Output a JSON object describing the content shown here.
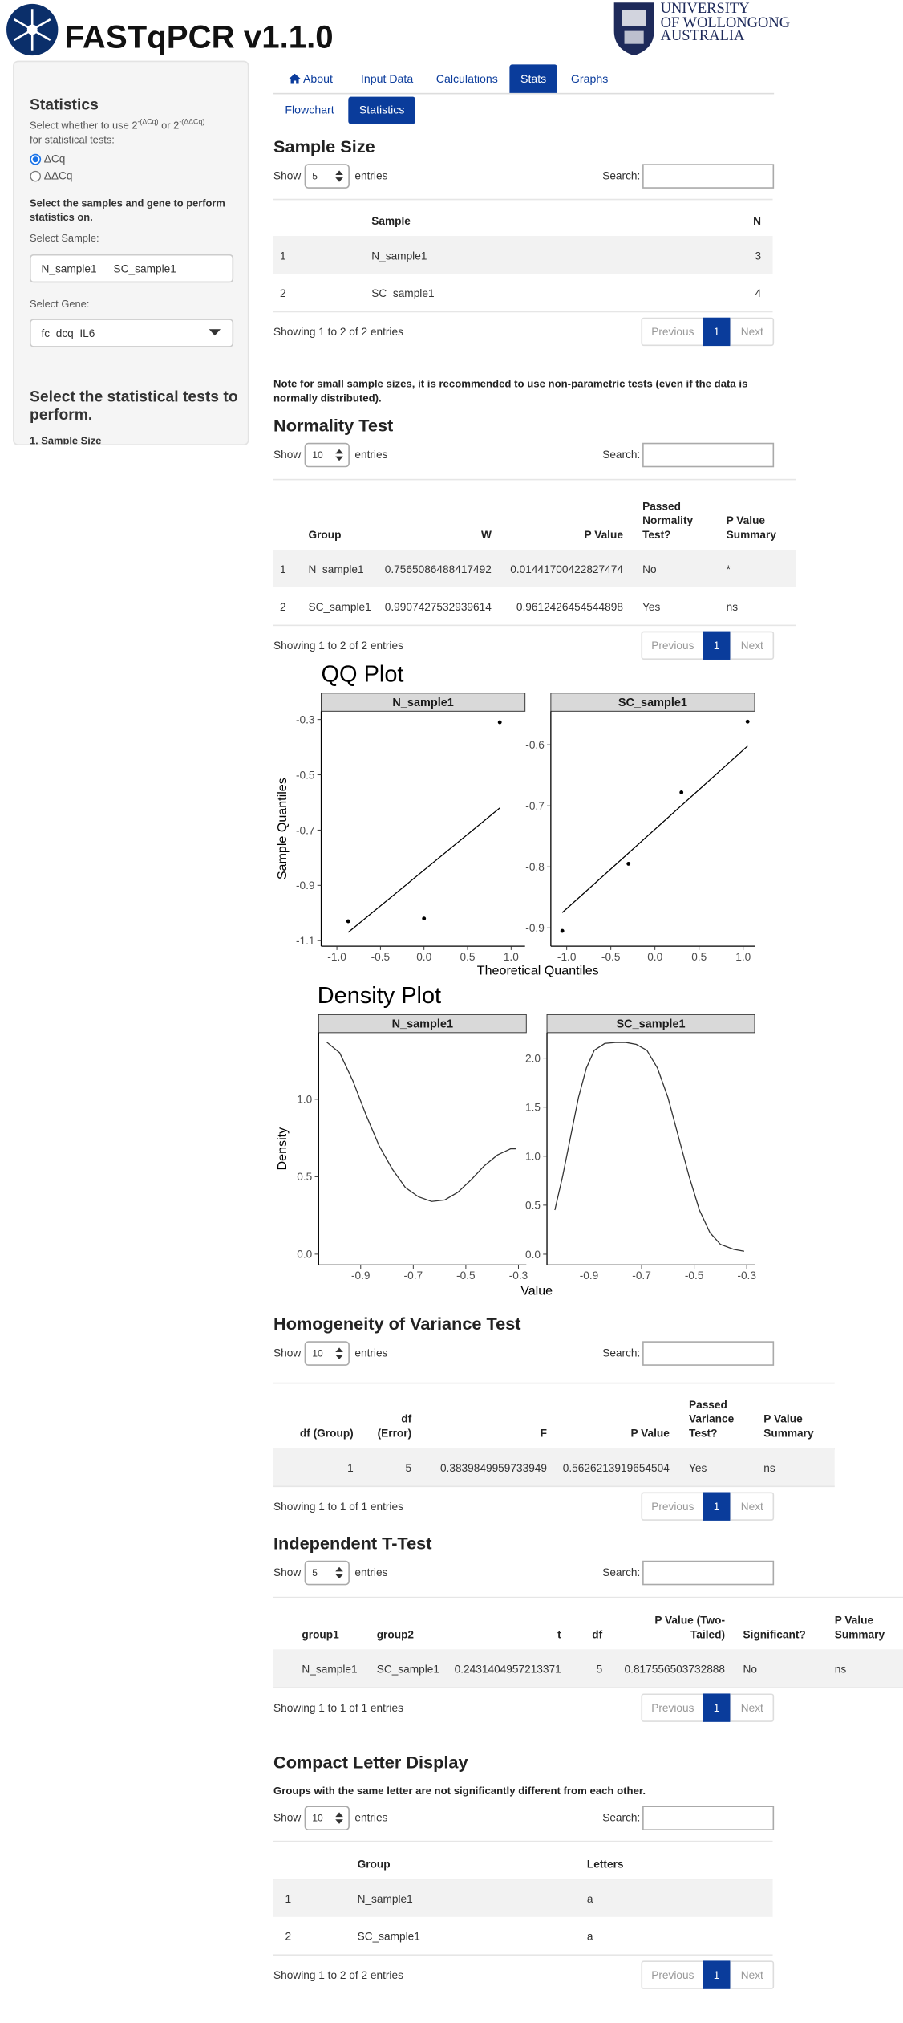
{
  "header": {
    "title": "FASTqPCR v1.1.0",
    "university": [
      "UNIVERSITY",
      "OF WOLLONGONG",
      "AUSTRALIA"
    ]
  },
  "sidebar": {
    "heading": "Statistics",
    "prompt": {
      "text1": "Select whether to use 2",
      "sup1": "-(ΔCq)",
      "text2": "or 2",
      "sup2": "-(ΔΔCq)",
      "text3": "for statistical tests:"
    },
    "options": [
      "ΔCq",
      "ΔΔCq"
    ],
    "samples_prompt": "Select the samples and gene to perform statistics on.",
    "sample_label": "Select Sample:",
    "samples": [
      "N_sample1",
      "SC_sample1"
    ],
    "gene_label": "Select Gene:",
    "gene": "fc_dcq_IL6",
    "tests_heading": "Select the statistical tests to perform.",
    "first_test": "1. Sample Size"
  },
  "tabs": {
    "items": [
      "About",
      "Input Data",
      "Calculations",
      "Stats",
      "Graphs"
    ],
    "subtabs": [
      "Flowchart",
      "Statistics"
    ]
  },
  "sample_size": {
    "title": "Sample Size",
    "show": "Show",
    "length": "5",
    "entries": "entries",
    "search": "Search:",
    "columns": [
      null,
      "Sample",
      "N"
    ],
    "rows": [
      [
        "1",
        "N_sample1",
        "3"
      ],
      [
        "2",
        "SC_sample1",
        "4"
      ]
    ],
    "info": "Showing 1 to 2 of 2 entries",
    "pager": {
      "previous": "Previous",
      "page": "1",
      "next": "Next"
    }
  },
  "note": "Note for small sample sizes, it is recommended to use non-parametric tests (even if the data is normally distributed).",
  "normality": {
    "title": "Normality Test",
    "show": "Show",
    "length": "10",
    "entries": "entries",
    "search": "Search:",
    "columns": [
      null,
      "Group",
      "W",
      "P Value",
      "Passed Normality Test?",
      "P Value Summary"
    ],
    "rows": [
      [
        "1",
        "N_sample1",
        "0.7565086488417492",
        "0.01441700422827474",
        "No",
        "*"
      ],
      [
        "2",
        "SC_sample1",
        "0.9907427532939614",
        "0.9612426454544898",
        "Yes",
        "ns"
      ]
    ],
    "info": "Showing 1 to 2 of 2 entries",
    "pager": {
      "previous": "Previous",
      "page": "1",
      "next": "Next"
    }
  },
  "qq_plot": {
    "type": "scatter",
    "title": "QQ Plot",
    "x_label": "Theoretical Quantiles",
    "y_label": "Sample Quantiles",
    "panels": [
      {
        "name": "N_sample1",
        "x": [
          -0.87,
          0,
          0.87
        ],
        "y": [
          -1.03,
          -1.02,
          -0.31
        ],
        "line_x": [
          -0.87,
          0.87
        ],
        "line_y": [
          -1.07,
          -0.62
        ],
        "xlim": [
          -1.18,
          1.16
        ],
        "ylim": [
          -1.12,
          -0.27
        ],
        "xticks": [
          {
            "value": -1,
            "label": "-1.0"
          },
          -0.5,
          {
            "value": 0,
            "label": "0.0"
          },
          0.5,
          {
            "value": 1,
            "label": "1.0"
          }
        ],
        "yticks": [
          -0.3,
          -0.5,
          -0.7,
          -0.9,
          -1.1
        ]
      },
      {
        "name": "SC_sample1",
        "x": [
          -1.05,
          -0.3,
          0.3,
          1.05
        ],
        "y": [
          -0.905,
          -0.795,
          -0.678,
          -0.562
        ],
        "line_x": [
          -1.05,
          1.05
        ],
        "line_y": [
          -0.875,
          -0.602
        ],
        "xlim": [
          -1.18,
          1.13
        ],
        "ylim": [
          -0.93,
          -0.545
        ],
        "xticks": [
          {
            "value": -1,
            "label": "-1.0"
          },
          -0.5,
          {
            "value": 0,
            "label": "0.0"
          },
          0.5,
          {
            "value": 1,
            "label": "1.0"
          }
        ],
        "yticks": [
          -0.6,
          -0.7,
          -0.8,
          -0.9
        ]
      }
    ]
  },
  "density_plot": {
    "type": "line",
    "title": "Density Plot",
    "x_label": "Value",
    "y_label": "Density",
    "panels": [
      {
        "name": "N_sample1",
        "x": [
          -1.03,
          -0.98,
          -0.93,
          -0.88,
          -0.83,
          -0.78,
          -0.73,
          -0.68,
          -0.63,
          -0.58,
          -0.53,
          -0.48,
          -0.43,
          -0.38,
          -0.33,
          -0.31
        ],
        "y": [
          1.37,
          1.3,
          1.12,
          0.9,
          0.7,
          0.55,
          0.43,
          0.37,
          0.34,
          0.35,
          0.4,
          0.48,
          0.57,
          0.64,
          0.68,
          0.68
        ],
        "xlim": [
          -1.06,
          -0.27
        ],
        "ylim": [
          -0.07,
          1.43
        ],
        "xticks": [
          -0.9,
          -0.7,
          -0.5,
          -0.3
        ],
        "yticks": [
          {
            "value": 0,
            "label": "0.0"
          },
          0.5,
          {
            "value": 1,
            "label": "1.0"
          }
        ]
      },
      {
        "name": "SC_sample1",
        "x": [
          -1.03,
          -1,
          -0.97,
          -0.94,
          -0.91,
          -0.88,
          -0.84,
          -0.8,
          -0.76,
          -0.72,
          -0.68,
          -0.64,
          -0.6,
          -0.56,
          -0.52,
          -0.48,
          -0.44,
          -0.4,
          -0.35,
          -0.31
        ],
        "y": [
          0.45,
          0.8,
          1.2,
          1.6,
          1.9,
          2.08,
          2.15,
          2.16,
          2.16,
          2.14,
          2.08,
          1.9,
          1.6,
          1.2,
          0.8,
          0.45,
          0.22,
          0.1,
          0.05,
          0.03
        ],
        "xlim": [
          -1.06,
          -0.27
        ],
        "ylim": [
          -0.11,
          2.26
        ],
        "xticks": [
          -0.9,
          -0.7,
          -0.5,
          -0.3
        ],
        "yticks": [
          {
            "value": 0,
            "label": "0.0"
          },
          0.5,
          {
            "value": 1,
            "label": "1.0"
          },
          1.5,
          {
            "value": 2,
            "label": "2.0"
          }
        ]
      }
    ]
  },
  "homogeneity": {
    "title": "Homogeneity of Variance Test",
    "show": "Show",
    "length": "10",
    "entries": "entries",
    "search": "Search:",
    "columns": [
      "df (Group)",
      "df (Error)",
      "F",
      "P Value",
      "Passed Variance Test?",
      "P Value Summary"
    ],
    "rows": [
      [
        "1",
        "5",
        "0.3839849959733949",
        "0.5626213919654504",
        "Yes",
        "ns"
      ]
    ],
    "info": "Showing 1 to 1 of 1 entries",
    "pager": {
      "previous": "Previous",
      "page": "1",
      "next": "Next"
    }
  },
  "ttest": {
    "title": "Independent T-Test",
    "show": "Show",
    "length": "5",
    "entries": "entries",
    "search": "Search:",
    "columns": [
      "group1",
      "group2",
      "t",
      "df",
      "P Value (Two-Tailed)",
      "Significant?",
      "P Value Summary"
    ],
    "rows": [
      [
        "N_sample1",
        "SC_sample1",
        "0.2431404957213371",
        "5",
        "0.817556503732888",
        "No",
        "ns"
      ]
    ],
    "info": "Showing 1 to 1 of 1 entries",
    "pager": {
      "previous": "Previous",
      "page": "1",
      "next": "Next"
    }
  },
  "cld": {
    "title": "Compact Letter Display",
    "subtitle": "Groups with the same letter are not significantly different from each other.",
    "show": "Show",
    "length": "10",
    "entries": "entries",
    "search": "Search:",
    "columns": [
      null,
      "Group",
      "Letters"
    ],
    "rows": [
      [
        "1",
        "N_sample1",
        "a"
      ],
      [
        "2",
        "SC_sample1",
        "a"
      ]
    ],
    "info": "Showing 1 to 2 of 2 entries",
    "pager": {
      "previous": "Previous",
      "page": "1",
      "next": "Next"
    }
  }
}
